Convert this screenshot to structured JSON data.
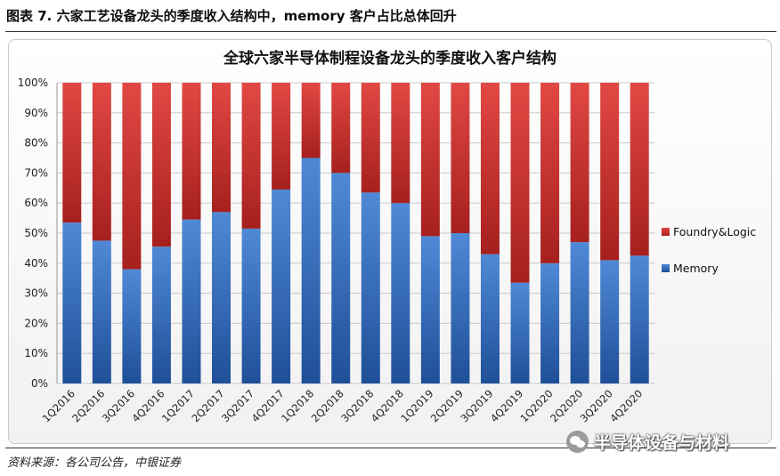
{
  "figure_title": "图表 7. 六家工艺设备龙头的季度收入结构中，memory 客户占比总体回升",
  "source_note": "资料来源：各公司公告，中银证券",
  "watermark": {
    "icon": "wechat-icon",
    "text": "半导体设备与材料"
  },
  "chart_data": {
    "type": "bar",
    "stacked": true,
    "percent": true,
    "title": "全球六家半导体制程设备龙头的季度收入客户结构",
    "xlabel": "",
    "ylabel": "",
    "ylim": [
      0,
      100
    ],
    "yticks": [
      "0%",
      "10%",
      "20%",
      "30%",
      "40%",
      "50%",
      "60%",
      "70%",
      "80%",
      "90%",
      "100%"
    ],
    "grid": true,
    "legend_position": "right",
    "categories": [
      "1Q2016",
      "2Q2016",
      "3Q2016",
      "4Q2016",
      "1Q2017",
      "2Q2017",
      "3Q2017",
      "4Q2017",
      "1Q2018",
      "2Q2018",
      "3Q2018",
      "4Q2018",
      "1Q2019",
      "2Q2019",
      "3Q2019",
      "4Q2019",
      "1Q2020",
      "2Q2020",
      "3Q2020",
      "4Q2020"
    ],
    "series": [
      {
        "name": "Memory",
        "color": "#3a75c3",
        "values": [
          53.5,
          47.5,
          38,
          45.5,
          54.5,
          57,
          51.5,
          64.5,
          75,
          70,
          63.5,
          60,
          49,
          50,
          43,
          33.5,
          40,
          47,
          41,
          42.5
        ]
      },
      {
        "name": "Foundry&Logic",
        "color": "#d23a35",
        "values": [
          46.5,
          52.5,
          62,
          54.5,
          45.5,
          43,
          48.5,
          35.5,
          25,
          30,
          36.5,
          40,
          51,
          50,
          57,
          66.5,
          60,
          53,
          59,
          57.5
        ]
      }
    ]
  }
}
